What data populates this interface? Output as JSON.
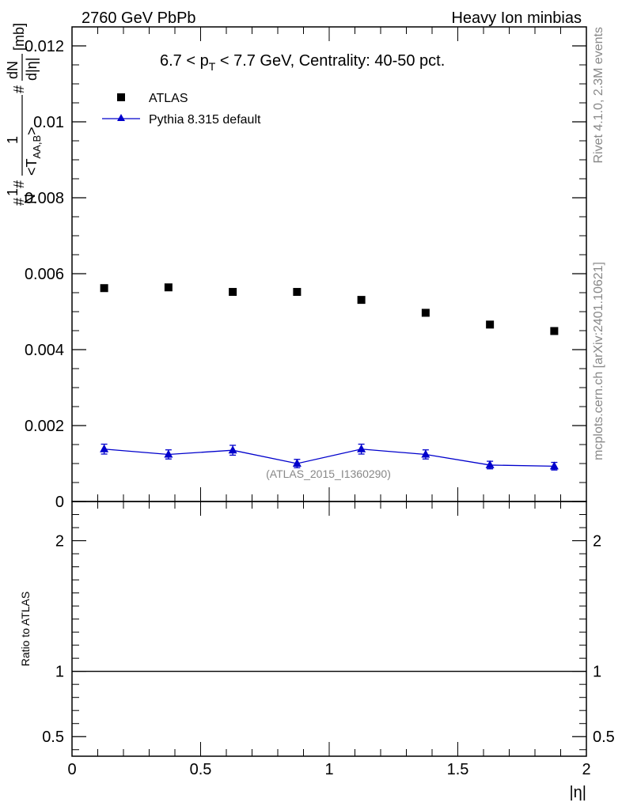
{
  "header": {
    "left": "2760 GeV PbPb",
    "right": "Heavy Ion minbias"
  },
  "side": {
    "top": "Rivet 4.1.0,  2.3M events",
    "bottom": "mcplots.cern.ch [arXiv:2401.10621]"
  },
  "chart_data": [
    {
      "type": "scatter",
      "title_parts": {
        "a": "6.7 < p",
        "sub": "T",
        "b": " < 7.7 GeV, Centrality: 40-50 pct."
      },
      "ylabel": "#frac{1}{N} #frac{1}{<T_{AA,B}>} #frac{dN}{d|η|} [mb]",
      "ylabel_pieces": {
        "top": "#",
        "one": "1",
        "n": "N",
        "taa": "<T",
        "taa_sub": "AA,B",
        "taa_close": ">",
        "dn": "dN",
        "deta": "d|η|",
        "unit": "[mb]"
      },
      "xlabel": "|η|",
      "xlim": [
        0,
        2
      ],
      "ylim": [
        0,
        0.0125
      ],
      "yticks": [
        {
          "v": 0,
          "label": "0"
        },
        {
          "v": 0.002,
          "label": "0.002"
        },
        {
          "v": 0.004,
          "label": "0.004"
        },
        {
          "v": 0.006,
          "label": "0.006"
        },
        {
          "v": 0.008,
          "label": "0.008"
        },
        {
          "v": 0.01,
          "label": "0.01"
        },
        {
          "v": 0.012,
          "label": "0.012"
        }
      ],
      "xticks": [
        {
          "v": 0,
          "label": "0"
        },
        {
          "v": 0.5,
          "label": "0.5"
        },
        {
          "v": 1,
          "label": "1"
        },
        {
          "v": 1.5,
          "label": "1.5"
        },
        {
          "v": 2,
          "label": "2"
        }
      ],
      "series": [
        {
          "name": "ATLAS",
          "marker": "square",
          "color": "#000000",
          "x": [
            0.125,
            0.375,
            0.625,
            0.875,
            1.125,
            1.375,
            1.625,
            1.875
          ],
          "y": [
            0.00562,
            0.00564,
            0.00552,
            0.00552,
            0.00531,
            0.00497,
            0.00466,
            0.00449
          ]
        },
        {
          "name": "Pythia 8.315 default",
          "marker": "triangle",
          "color": "#0000cc",
          "x": [
            0.125,
            0.375,
            0.625,
            0.875,
            1.125,
            1.375,
            1.625,
            1.875
          ],
          "y": [
            0.00138,
            0.00124,
            0.00135,
            0.001,
            0.00138,
            0.00124,
            0.00096,
            0.00093
          ],
          "err": [
            0.00013,
            0.00012,
            0.00013,
            0.00011,
            0.00013,
            0.00012,
            0.0001,
            0.0001
          ]
        }
      ],
      "watermark": "(ATLAS_2015_I1360290)"
    },
    {
      "type": "line",
      "ylabel": "Ratio to ATLAS",
      "ylim": [
        0.35,
        2.3
      ],
      "yticks": [
        {
          "v": 0.5,
          "label": "0.5"
        },
        {
          "v": 1,
          "label": "1"
        },
        {
          "v": 2,
          "label": "2"
        }
      ],
      "reference": 1
    }
  ]
}
